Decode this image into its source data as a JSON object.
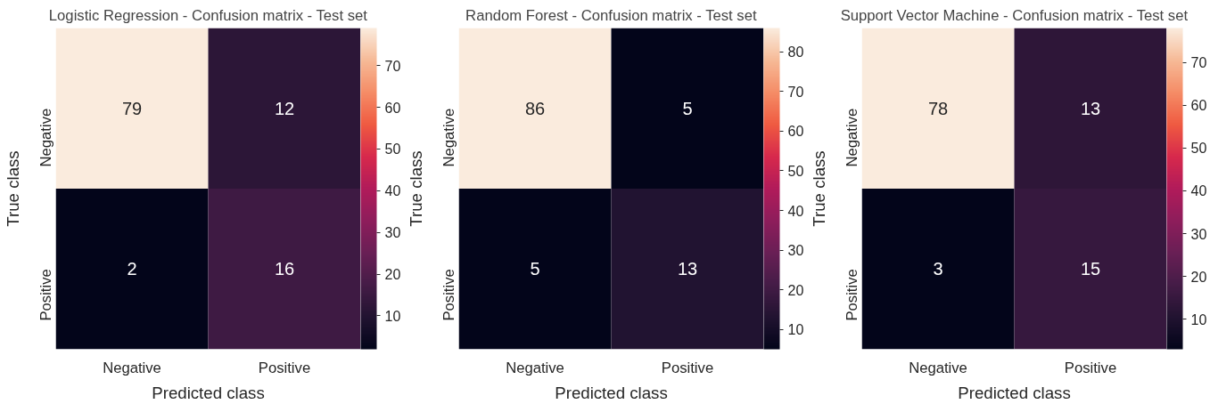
{
  "chart_data": [
    {
      "type": "heatmap",
      "title": "Logistic Regression - Confusion matrix - Test set",
      "xlabel": "Predicted class",
      "ylabel": "True class",
      "categories": [
        "Negative",
        "Positive"
      ],
      "y_categories": [
        "Negative",
        "Positive"
      ],
      "cells": [
        [
          79,
          12
        ],
        [
          2,
          16
        ]
      ],
      "data_labels": true,
      "clim": [
        2,
        79
      ],
      "cticks": [
        10,
        20,
        30,
        40,
        50,
        60,
        70
      ]
    },
    {
      "type": "heatmap",
      "title": "Random Forest - Confusion matrix - Test set",
      "xlabel": "Predicted class",
      "ylabel": "True class",
      "categories": [
        "Negative",
        "Positive"
      ],
      "y_categories": [
        "Negative",
        "Positive"
      ],
      "cells": [
        [
          86,
          5
        ],
        [
          5,
          13
        ]
      ],
      "data_labels": true,
      "clim": [
        5,
        86
      ],
      "cticks": [
        10,
        20,
        30,
        40,
        50,
        60,
        70,
        80
      ]
    },
    {
      "type": "heatmap",
      "title": "Support Vector Machine - Confusion matrix - Test set",
      "xlabel": "Predicted class",
      "ylabel": "True class",
      "categories": [
        "Negative",
        "Positive"
      ],
      "y_categories": [
        "Negative",
        "Positive"
      ],
      "cells": [
        [
          78,
          13
        ],
        [
          3,
          15
        ]
      ],
      "data_labels": true,
      "clim": [
        3,
        78
      ],
      "cticks": [
        10,
        20,
        30,
        40,
        50,
        60,
        70
      ]
    }
  ]
}
